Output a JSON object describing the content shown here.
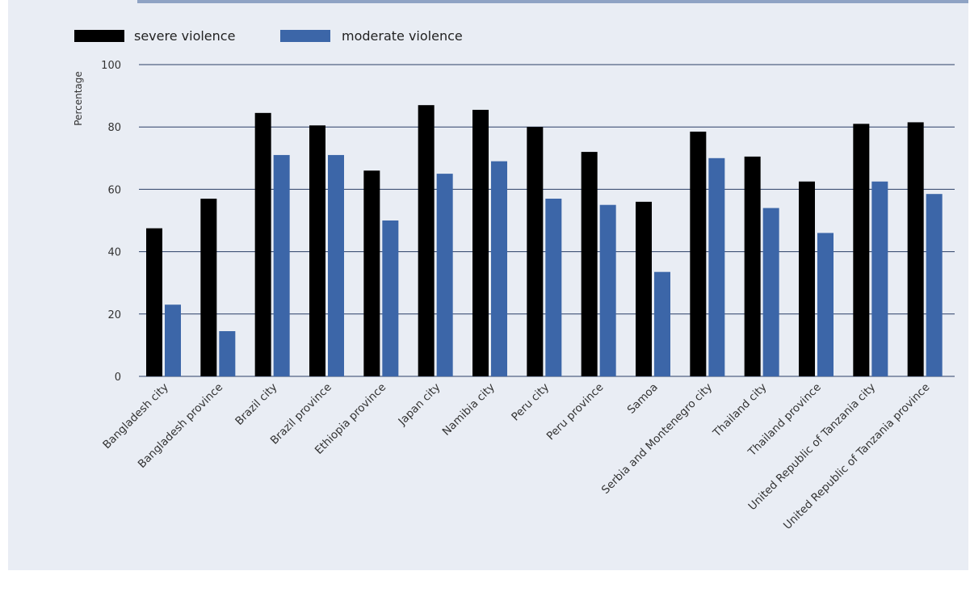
{
  "chart_data": {
    "type": "bar",
    "categories": [
      "Bangladesh city",
      "Bangladesh province",
      "Brazil city",
      "Brazil province",
      "Ethiopia province",
      "Japan city",
      "Namibia city",
      "Peru city",
      "Peru province",
      "Samoa",
      "Serbia and Montenegro city",
      "Thailand city",
      "Thailand province",
      "United Republic of Tanzania city",
      "United Republic of Tanzania province"
    ],
    "series": [
      {
        "name": "severe violence",
        "color": "#000000",
        "values": [
          47.5,
          57,
          84.5,
          80.5,
          66,
          87,
          85.5,
          80,
          72,
          56,
          78.5,
          70.5,
          62.5,
          81,
          81.5
        ]
      },
      {
        "name": "moderate violence",
        "color": "#3c66a8",
        "values": [
          23,
          14.5,
          71,
          71,
          50,
          65,
          69,
          57,
          55,
          33.5,
          70,
          54,
          46,
          62.5,
          58.5
        ]
      }
    ],
    "title": "",
    "xlabel": "",
    "ylabel": "Percentage",
    "ylim": [
      0,
      100
    ],
    "yticks": [
      0,
      20,
      40,
      60,
      80,
      100
    ],
    "grid": true,
    "legend": "top-left"
  }
}
